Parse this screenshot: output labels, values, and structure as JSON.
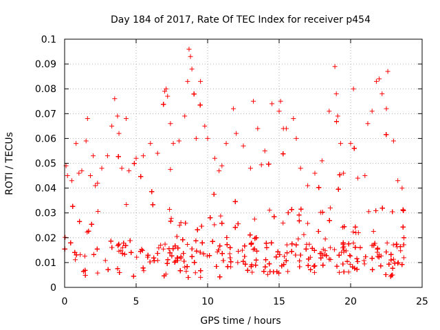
{
  "chart_data": {
    "type": "scatter",
    "title": "Day 184 of 2017, Rate Of TEC Index for receiver p454",
    "xlabel": "GPS time / hours",
    "ylabel": "ROTI / TECUs",
    "xlim": [
      0,
      25
    ],
    "ylim": [
      0,
      0.1
    ],
    "x_ticks": [
      0,
      5,
      10,
      15,
      20,
      25
    ],
    "x_tick_labels": [
      "0",
      "5",
      "10",
      "15",
      "20",
      "25"
    ],
    "y_ticks": [
      0,
      0.01,
      0.02,
      0.03,
      0.04,
      0.05,
      0.06,
      0.07,
      0.08,
      0.09,
      0.1
    ],
    "y_tick_labels": [
      "0",
      "0.01",
      "0.02",
      "0.03",
      "0.04",
      "0.05",
      "0.06",
      "0.07",
      "0.08",
      "0.09",
      "0.1"
    ],
    "grid": true,
    "marker": "+",
    "marker_color": "#ff0000",
    "data_range_x": [
      0,
      23.8
    ],
    "series": [
      {
        "name": "ROTI",
        "x": [
          0.1,
          0.2,
          0.5,
          0.8,
          1.0,
          1.2,
          1.5,
          1.6,
          1.8,
          2.0,
          2.3,
          2.6,
          3.0,
          3.3,
          3.5,
          3.7,
          3.8,
          4.0,
          4.3,
          4.5,
          5.0,
          5.5,
          6.0,
          6.5,
          7.0,
          7.1,
          7.2,
          7.4,
          7.6,
          8.0,
          8.4,
          8.6,
          8.7,
          8.8,
          8.9,
          9.2,
          9.5,
          9.8,
          10.0,
          10.5,
          10.8,
          11.0,
          11.3,
          11.8,
          12.0,
          12.5,
          13.0,
          13.2,
          13.5,
          14.0,
          14.5,
          15.0,
          15.1,
          15.3,
          15.5,
          16.0,
          16.2,
          16.5,
          17.0,
          17.5,
          18.0,
          18.5,
          18.9,
          19.0,
          19.1,
          19.3,
          19.5,
          20.0,
          20.2,
          20.5,
          21.0,
          21.2,
          21.5,
          21.8,
          22.0,
          22.2,
          22.5,
          22.6,
          23.0,
          23.3,
          23.6
        ],
        "y": [
          0.049,
          0.045,
          0.043,
          0.058,
          0.046,
          0.047,
          0.059,
          0.068,
          0.045,
          0.053,
          0.042,
          0.048,
          0.053,
          0.065,
          0.076,
          0.069,
          0.062,
          0.048,
          0.068,
          0.047,
          0.052,
          0.053,
          0.058,
          0.054,
          0.079,
          0.08,
          0.077,
          0.066,
          0.058,
          0.059,
          0.069,
          0.083,
          0.096,
          0.093,
          0.088,
          0.06,
          0.083,
          0.065,
          0.06,
          0.052,
          0.047,
          0.049,
          0.058,
          0.072,
          0.062,
          0.057,
          0.048,
          0.075,
          0.064,
          0.055,
          0.074,
          0.071,
          0.075,
          0.064,
          0.064,
          0.068,
          0.06,
          0.048,
          0.041,
          0.046,
          0.051,
          0.071,
          0.089,
          0.078,
          0.069,
          0.058,
          0.046,
          0.058,
          0.08,
          0.044,
          0.045,
          0.066,
          0.071,
          0.083,
          0.084,
          0.078,
          0.072,
          0.087,
          0.059,
          0.043,
          0.04
        ]
      }
    ]
  }
}
